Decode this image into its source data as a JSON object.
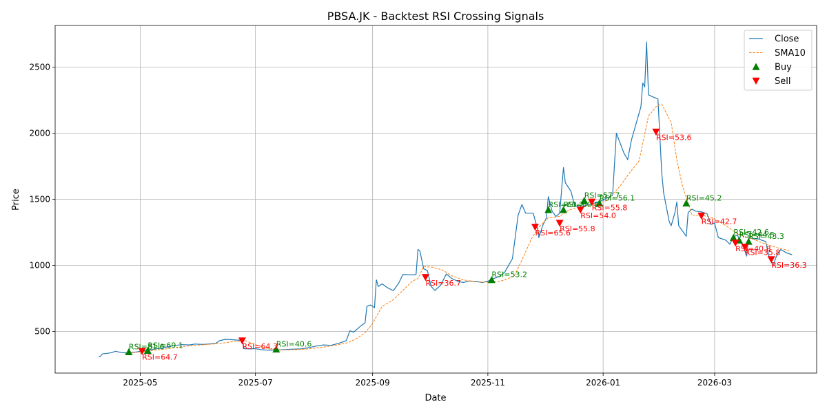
{
  "chart_data": {
    "type": "line",
    "title": "PBSA.JK - Backtest RSI Crossing Signals",
    "xlabel": "Date",
    "ylabel": "Price",
    "x_range": [
      "2025-03-17",
      "2026-04-24"
    ],
    "ylim": [
      185,
      2815
    ],
    "x_ticks": [
      "2025-05-01",
      "2025-07-01",
      "2025-09-01",
      "2025-11-01",
      "2026-01-01",
      "2026-03-01"
    ],
    "x_tick_labels": [
      "2025-05",
      "2025-07",
      "2025-09",
      "2025-11",
      "2026-01",
      "2026-03"
    ],
    "y_ticks": [
      500,
      1000,
      1500,
      2000,
      2500
    ],
    "y_tick_labels": [
      "500",
      "1000",
      "1500",
      "2000",
      "2500"
    ],
    "grid": true,
    "legend_position": "top-right",
    "series": [
      {
        "name": "Close",
        "color": "#1f77b4",
        "style": "solid",
        "points": [
          [
            "2025-04-09",
            310
          ],
          [
            "2025-04-10",
            312
          ],
          [
            "2025-04-11",
            330
          ],
          [
            "2025-04-14",
            335
          ],
          [
            "2025-04-16",
            340
          ],
          [
            "2025-04-18",
            350
          ],
          [
            "2025-04-21",
            340
          ],
          [
            "2025-04-23",
            338
          ],
          [
            "2025-04-25",
            340
          ],
          [
            "2025-04-29",
            345
          ],
          [
            "2025-05-02",
            352
          ],
          [
            "2025-05-06",
            360
          ],
          [
            "2025-05-09",
            368
          ],
          [
            "2025-05-13",
            375
          ],
          [
            "2025-05-16",
            385
          ],
          [
            "2025-05-20",
            395
          ],
          [
            "2025-05-23",
            400
          ],
          [
            "2025-05-27",
            398
          ],
          [
            "2025-05-30",
            405
          ],
          [
            "2025-06-03",
            402
          ],
          [
            "2025-06-06",
            405
          ],
          [
            "2025-06-10",
            410
          ],
          [
            "2025-06-12",
            430
          ],
          [
            "2025-06-15",
            440
          ],
          [
            "2025-06-18",
            438
          ],
          [
            "2025-06-21",
            435
          ],
          [
            "2025-06-24",
            432
          ],
          [
            "2025-06-25",
            370
          ],
          [
            "2025-06-28",
            368
          ],
          [
            "2025-07-01",
            370
          ],
          [
            "2025-07-04",
            362
          ],
          [
            "2025-07-08",
            358
          ],
          [
            "2025-07-12",
            360
          ],
          [
            "2025-07-16",
            362
          ],
          [
            "2025-07-20",
            365
          ],
          [
            "2025-07-25",
            368
          ],
          [
            "2025-07-30",
            380
          ],
          [
            "2025-08-03",
            392
          ],
          [
            "2025-08-06",
            398
          ],
          [
            "2025-08-10",
            395
          ],
          [
            "2025-08-14",
            410
          ],
          [
            "2025-08-18",
            430
          ],
          [
            "2025-08-20",
            505
          ],
          [
            "2025-08-22",
            495
          ],
          [
            "2025-08-24",
            520
          ],
          [
            "2025-08-26",
            545
          ],
          [
            "2025-08-28",
            565
          ],
          [
            "2025-08-29",
            690
          ],
          [
            "2025-08-31",
            700
          ],
          [
            "2025-09-02",
            680
          ],
          [
            "2025-09-03",
            890
          ],
          [
            "2025-09-04",
            840
          ],
          [
            "2025-09-06",
            860
          ],
          [
            "2025-09-09",
            830
          ],
          [
            "2025-09-12",
            808
          ],
          [
            "2025-09-15",
            870
          ],
          [
            "2025-09-17",
            930
          ],
          [
            "2025-09-22",
            928
          ],
          [
            "2025-09-24",
            930
          ],
          [
            "2025-09-25",
            1120
          ],
          [
            "2025-09-26",
            1110
          ],
          [
            "2025-09-28",
            975
          ],
          [
            "2025-09-30",
            960
          ],
          [
            "2025-10-02",
            840
          ],
          [
            "2025-10-04",
            810
          ],
          [
            "2025-10-07",
            850
          ],
          [
            "2025-10-10",
            935
          ],
          [
            "2025-10-13",
            900
          ],
          [
            "2025-10-16",
            880
          ],
          [
            "2025-10-19",
            870
          ],
          [
            "2025-10-22",
            882
          ],
          [
            "2025-10-26",
            878
          ],
          [
            "2025-10-29",
            870
          ],
          [
            "2025-11-01",
            880
          ],
          [
            "2025-11-04",
            900
          ],
          [
            "2025-11-07",
            915
          ],
          [
            "2025-11-10",
            950
          ],
          [
            "2025-11-14",
            1050
          ],
          [
            "2025-11-17",
            1380
          ],
          [
            "2025-11-19",
            1460
          ],
          [
            "2025-11-21",
            1395
          ],
          [
            "2025-11-25",
            1395
          ],
          [
            "2025-11-27",
            1290
          ],
          [
            "2025-11-28",
            1210
          ],
          [
            "2025-11-30",
            1300
          ],
          [
            "2025-12-02",
            1360
          ],
          [
            "2025-12-03",
            1520
          ],
          [
            "2025-12-05",
            1410
          ],
          [
            "2025-12-07",
            1370
          ],
          [
            "2025-12-09",
            1395
          ],
          [
            "2025-12-11",
            1740
          ],
          [
            "2025-12-12",
            1625
          ],
          [
            "2025-12-15",
            1560
          ],
          [
            "2025-12-17",
            1450
          ],
          [
            "2025-12-20",
            1440
          ],
          [
            "2025-12-24",
            1460
          ],
          [
            "2025-12-27",
            1470
          ],
          [
            "2025-12-30",
            1480
          ],
          [
            "2026-01-03",
            1510
          ],
          [
            "2026-01-06",
            1530
          ],
          [
            "2026-01-08",
            2000
          ],
          [
            "2026-01-12",
            1850
          ],
          [
            "2026-01-14",
            1800
          ],
          [
            "2026-01-16",
            1950
          ],
          [
            "2026-01-21",
            2200
          ],
          [
            "2026-01-22",
            2380
          ],
          [
            "2026-01-23",
            2350
          ],
          [
            "2026-01-24",
            2690
          ],
          [
            "2026-01-25",
            2290
          ],
          [
            "2026-01-28",
            2270
          ],
          [
            "2026-01-30",
            2260
          ],
          [
            "2026-02-01",
            1700
          ],
          [
            "2026-02-02",
            1550
          ],
          [
            "2026-02-05",
            1330
          ],
          [
            "2026-02-06",
            1300
          ],
          [
            "2026-02-08",
            1400
          ],
          [
            "2026-02-09",
            1480
          ],
          [
            "2026-02-10",
            1300
          ],
          [
            "2026-02-14",
            1220
          ],
          [
            "2026-02-15",
            1400
          ],
          [
            "2026-02-17",
            1425
          ],
          [
            "2026-02-19",
            1410
          ],
          [
            "2026-02-22",
            1405
          ],
          [
            "2026-02-25",
            1390
          ],
          [
            "2026-02-27",
            1310
          ],
          [
            "2026-03-01",
            1320
          ],
          [
            "2026-03-03",
            1210
          ],
          [
            "2026-03-07",
            1190
          ],
          [
            "2026-03-09",
            1160
          ],
          [
            "2026-03-11",
            1215
          ],
          [
            "2026-03-13",
            1230
          ],
          [
            "2026-03-16",
            1150
          ],
          [
            "2026-03-18",
            1070
          ],
          [
            "2026-03-19",
            1210
          ],
          [
            "2026-03-22",
            1200
          ],
          [
            "2026-03-24",
            1200
          ],
          [
            "2026-03-26",
            1190
          ],
          [
            "2026-03-28",
            1180
          ],
          [
            "2026-03-30",
            1050
          ],
          [
            "2026-04-01",
            1000
          ],
          [
            "2026-04-03",
            1080
          ],
          [
            "2026-04-05",
            1120
          ],
          [
            "2026-04-08",
            1095
          ],
          [
            "2026-04-11",
            1080
          ]
        ]
      },
      {
        "name": "SMA10",
        "color": "#ff7f0e",
        "style": "dashed",
        "points": [
          [
            "2025-04-23",
            335
          ],
          [
            "2025-05-01",
            345
          ],
          [
            "2025-05-09",
            358
          ],
          [
            "2025-05-16",
            370
          ],
          [
            "2025-05-23",
            385
          ],
          [
            "2025-05-30",
            395
          ],
          [
            "2025-06-06",
            402
          ],
          [
            "2025-06-13",
            410
          ],
          [
            "2025-06-20",
            425
          ],
          [
            "2025-06-26",
            428
          ],
          [
            "2025-07-02",
            395
          ],
          [
            "2025-07-08",
            368
          ],
          [
            "2025-07-15",
            360
          ],
          [
            "2025-07-22",
            362
          ],
          [
            "2025-07-29",
            368
          ],
          [
            "2025-08-05",
            380
          ],
          [
            "2025-08-12",
            395
          ],
          [
            "2025-08-19",
            415
          ],
          [
            "2025-08-24",
            450
          ],
          [
            "2025-08-28",
            490
          ],
          [
            "2025-09-01",
            560
          ],
          [
            "2025-09-06",
            690
          ],
          [
            "2025-09-12",
            740
          ],
          [
            "2025-09-17",
            810
          ],
          [
            "2025-09-22",
            880
          ],
          [
            "2025-09-25",
            900
          ],
          [
            "2025-09-28",
            990
          ],
          [
            "2025-10-03",
            985
          ],
          [
            "2025-10-08",
            965
          ],
          [
            "2025-10-13",
            920
          ],
          [
            "2025-10-19",
            890
          ],
          [
            "2025-10-26",
            875
          ],
          [
            "2025-11-02",
            872
          ],
          [
            "2025-11-09",
            885
          ],
          [
            "2025-11-15",
            920
          ],
          [
            "2025-11-20",
            1070
          ],
          [
            "2025-11-24",
            1200
          ],
          [
            "2025-11-28",
            1290
          ],
          [
            "2025-12-03",
            1360
          ],
          [
            "2025-12-09",
            1370
          ],
          [
            "2025-12-14",
            1420
          ],
          [
            "2025-12-20",
            1440
          ],
          [
            "2025-12-27",
            1460
          ],
          [
            "2026-01-03",
            1490
          ],
          [
            "2026-01-10",
            1600
          ],
          [
            "2026-01-15",
            1700
          ],
          [
            "2026-01-20",
            1790
          ],
          [
            "2026-01-25",
            2130
          ],
          [
            "2026-01-29",
            2200
          ],
          [
            "2026-02-01",
            2220
          ],
          [
            "2026-02-06",
            2080
          ],
          [
            "2026-02-09",
            1800
          ],
          [
            "2026-02-12",
            1600
          ],
          [
            "2026-02-17",
            1380
          ],
          [
            "2026-02-22",
            1380
          ],
          [
            "2026-02-28",
            1360
          ],
          [
            "2026-03-07",
            1300
          ],
          [
            "2026-03-14",
            1230
          ],
          [
            "2026-03-21",
            1200
          ],
          [
            "2026-03-28",
            1160
          ],
          [
            "2026-04-04",
            1130
          ],
          [
            "2026-04-10",
            1110
          ]
        ]
      }
    ],
    "markers": {
      "buy": {
        "name": "Buy",
        "color": "#008000",
        "points": [
          {
            "date": "2025-04-25",
            "price": 345,
            "label": "RSI=81.6"
          },
          {
            "date": "2025-05-05",
            "price": 355,
            "label": "RSI=69.1"
          },
          {
            "date": "2025-07-12",
            "price": 365,
            "label": "RSI=40.6"
          },
          {
            "date": "2025-11-03",
            "price": 890,
            "label": "RSI=53.2"
          },
          {
            "date": "2025-12-03",
            "price": 1420,
            "label": "RSI=60.2"
          },
          {
            "date": "2025-12-11",
            "price": 1420,
            "label": "RSI=60.8"
          },
          {
            "date": "2025-12-22",
            "price": 1490,
            "label": "RSI=57.7"
          },
          {
            "date": "2025-12-30",
            "price": 1470,
            "label": "RSI=56.1"
          },
          {
            "date": "2026-02-14",
            "price": 1470,
            "label": "RSI=45.2"
          },
          {
            "date": "2026-03-11",
            "price": 1210,
            "label": "RSI=42.6"
          },
          {
            "date": "2026-03-14",
            "price": 1190,
            "label": "RSI=44.5"
          },
          {
            "date": "2026-03-19",
            "price": 1180,
            "label": "RSI=43.3"
          }
        ]
      },
      "sell": {
        "name": "Sell",
        "color": "#ff0000",
        "points": [
          {
            "date": "2025-05-02",
            "price": 350,
            "label": "RSI=64.7"
          },
          {
            "date": "2025-06-24",
            "price": 430,
            "label": "RSI=64.3"
          },
          {
            "date": "2025-09-29",
            "price": 910,
            "label": "RSI=36.7"
          },
          {
            "date": "2025-11-26",
            "price": 1290,
            "label": "RSI=65.6"
          },
          {
            "date": "2025-12-09",
            "price": 1320,
            "label": "RSI=55.8"
          },
          {
            "date": "2025-12-20",
            "price": 1420,
            "label": "RSI=54.0"
          },
          {
            "date": "2025-12-26",
            "price": 1480,
            "label": "RSI=55.8"
          },
          {
            "date": "2026-01-29",
            "price": 2010,
            "label": "RSI=53.6"
          },
          {
            "date": "2026-02-22",
            "price": 1375,
            "label": "RSI=42.7"
          },
          {
            "date": "2026-03-12",
            "price": 1170,
            "label": "RSI=40.8"
          },
          {
            "date": "2026-03-17",
            "price": 1140,
            "label": "RSI=35.8"
          },
          {
            "date": "2026-03-31",
            "price": 1045,
            "label": "RSI=36.3"
          }
        ]
      }
    },
    "legend": [
      {
        "name": "Close",
        "kind": "line-solid",
        "color": "#1f77b4"
      },
      {
        "name": "SMA10",
        "kind": "line-dashed",
        "color": "#ff7f0e"
      },
      {
        "name": "Buy",
        "kind": "triangle-up",
        "color": "#008000"
      },
      {
        "name": "Sell",
        "kind": "triangle-down",
        "color": "#ff0000"
      }
    ]
  }
}
